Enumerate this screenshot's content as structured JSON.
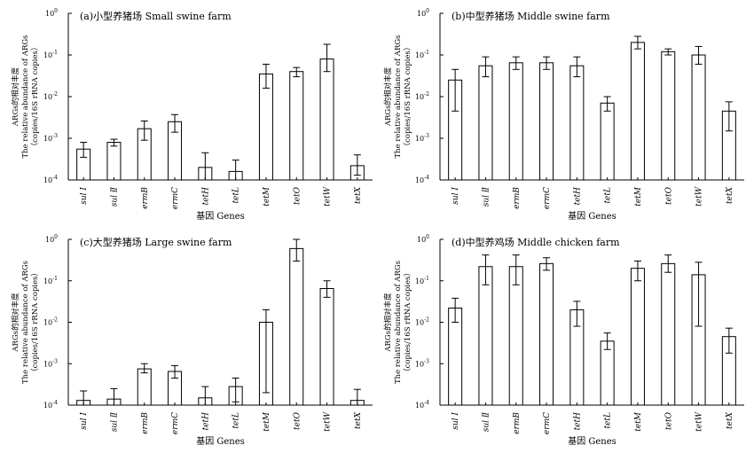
{
  "chart_data": [
    {
      "type": "bar",
      "title": "(a)小型养猪场 Small swine farm",
      "ylabel": [
        "ARGs的相对丰度",
        "The relative abundance of ARGs",
        "（copies/16S rRNA copies）"
      ],
      "xlabel": "基因 Genes",
      "yscale": "log",
      "ylim": [
        0.0001,
        1
      ],
      "yticks": [
        {
          "base": "10",
          "exp": "0"
        },
        {
          "base": "10",
          "exp": "-1"
        },
        {
          "base": "10",
          "exp": "-2"
        },
        {
          "base": "10",
          "exp": "-3"
        },
        {
          "base": "10",
          "exp": "-4"
        }
      ],
      "categories": [
        "sul Ⅰ",
        "sul Ⅱ",
        "ermB",
        "ermC",
        "tetH",
        "tetL",
        "tetM",
        "tetO",
        "tetW",
        "tetX"
      ],
      "values": [
        0.00055,
        0.0008,
        0.0017,
        0.0025,
        0.0002,
        0.00016,
        0.035,
        0.04,
        0.08,
        0.00022
      ],
      "error_low": [
        0.00035,
        0.00065,
        0.0009,
        0.0014,
        0.0001,
        0.0001,
        0.016,
        0.03,
        0.04,
        0.00013
      ],
      "error_high": [
        0.0008,
        0.00095,
        0.0026,
        0.0037,
        0.00045,
        0.0003,
        0.06,
        0.05,
        0.18,
        0.0004
      ]
    },
    {
      "type": "bar",
      "title": "(b)中型养猪场 Middle swine farm",
      "ylabel": [
        "ARGs的相对丰度",
        "The relative abundance of ARGs",
        "（copies/16S rRNA copies）"
      ],
      "xlabel": "基因 Genes",
      "yscale": "log",
      "ylim": [
        0.0001,
        1
      ],
      "yticks": [
        {
          "base": "10",
          "exp": "0"
        },
        {
          "base": "10",
          "exp": "-1"
        },
        {
          "base": "10",
          "exp": "-2"
        },
        {
          "base": "10",
          "exp": "-3"
        },
        {
          "base": "10",
          "exp": "-4"
        }
      ],
      "categories": [
        "sul Ⅰ",
        "sul Ⅱ",
        "ermB",
        "ermC",
        "tetH",
        "tetL",
        "tetM",
        "tetO",
        "tetW",
        "tetX"
      ],
      "values": [
        0.025,
        0.055,
        0.065,
        0.065,
        0.055,
        0.007,
        0.2,
        0.12,
        0.1,
        0.0045
      ],
      "error_low": [
        0.0045,
        0.03,
        0.045,
        0.045,
        0.03,
        0.0045,
        0.14,
        0.1,
        0.06,
        0.0015
      ],
      "error_high": [
        0.045,
        0.09,
        0.09,
        0.09,
        0.09,
        0.01,
        0.28,
        0.14,
        0.16,
        0.0075
      ]
    },
    {
      "type": "bar",
      "title": "(c)大型养猪场 Large swine farm",
      "ylabel": [
        "ARGs的相对丰度",
        "The relative abundance of ARGs",
        "（copies/16S rRNA copies）"
      ],
      "xlabel": "基因 Genes",
      "yscale": "log",
      "ylim": [
        0.0001,
        1
      ],
      "yticks": [
        {
          "base": "10",
          "exp": "0"
        },
        {
          "base": "10",
          "exp": "-1"
        },
        {
          "base": "10",
          "exp": "-2"
        },
        {
          "base": "10",
          "exp": "-3"
        },
        {
          "base": "10",
          "exp": "-4"
        }
      ],
      "categories": [
        "sul Ⅰ",
        "sul Ⅱ",
        "ermB",
        "ermC",
        "tetH",
        "tetL",
        "tetM",
        "tetO",
        "tetW",
        "tetX"
      ],
      "values": [
        0.00013,
        0.00014,
        0.00075,
        0.00065,
        0.00015,
        0.00028,
        0.01,
        0.6,
        0.065,
        0.00013
      ],
      "error_low": [
        0.0001,
        0.0001,
        0.0006,
        0.00045,
        0.0001,
        0.00012,
        0.0002,
        0.3,
        0.04,
        0.0001
      ],
      "error_high": [
        0.00022,
        0.00025,
        0.001,
        0.0009,
        0.00028,
        0.00045,
        0.02,
        1.0,
        0.1,
        0.00024
      ]
    },
    {
      "type": "bar",
      "title": "(d)中型养鸡场 Middle chicken farm",
      "ylabel": [
        "ARGs的相对丰度",
        "The relative abundance of ARGs",
        "（copies/16S rRNA copies）"
      ],
      "xlabel": "基因 Genes",
      "yscale": "log",
      "ylim": [
        0.0001,
        1
      ],
      "yticks": [
        {
          "base": "10",
          "exp": "0"
        },
        {
          "base": "10",
          "exp": "-1"
        },
        {
          "base": "10",
          "exp": "-2"
        },
        {
          "base": "10",
          "exp": "-3"
        },
        {
          "base": "10",
          "exp": "-4"
        }
      ],
      "categories": [
        "sul Ⅰ",
        "sul Ⅱ",
        "ermB",
        "ermC",
        "tetH",
        "tetL",
        "tetM",
        "tetO",
        "tetW",
        "tetX"
      ],
      "values": [
        0.022,
        0.22,
        0.22,
        0.26,
        0.02,
        0.0035,
        0.2,
        0.26,
        0.14,
        0.0045
      ],
      "error_low": [
        0.01,
        0.08,
        0.08,
        0.18,
        0.008,
        0.0022,
        0.1,
        0.16,
        0.008,
        0.0018
      ],
      "error_high": [
        0.038,
        0.42,
        0.42,
        0.36,
        0.032,
        0.0055,
        0.3,
        0.42,
        0.28,
        0.0072
      ]
    }
  ]
}
